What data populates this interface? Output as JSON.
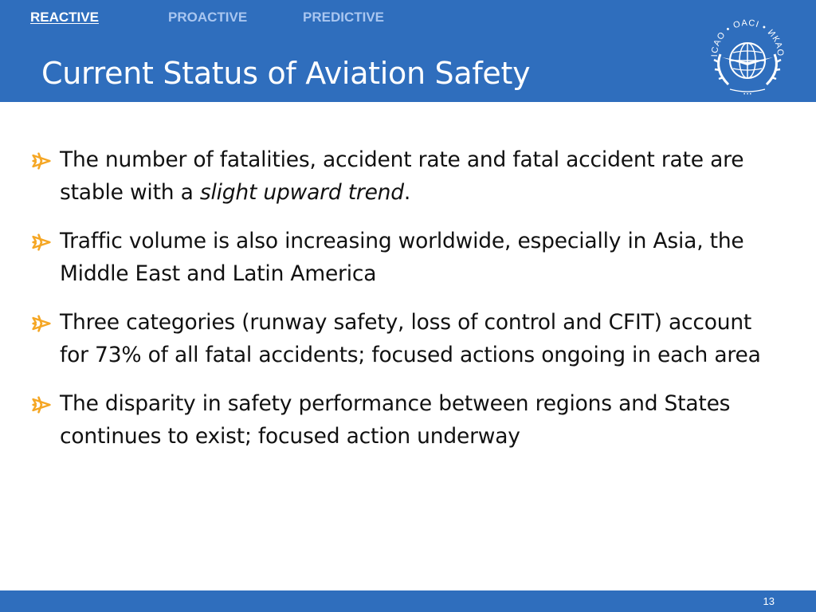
{
  "nav": {
    "tabs": [
      {
        "label": "REACTIVE",
        "active": true
      },
      {
        "label": "PROACTIVE",
        "active": false
      },
      {
        "label": "PREDICTIVE",
        "active": false
      }
    ]
  },
  "title": "Current Status of Aviation Safety",
  "logo": {
    "text": "ICAO • OACI • ИКАО",
    "icon": "icao-emblem-icon"
  },
  "bullets": [
    {
      "text_before": "The number of fatalities, accident rate and fatal accident rate are stable with a ",
      "emphasis": "slight upward trend",
      "text_after": "."
    },
    {
      "text_before": "Traffic volume is also increasing worldwide, especially in Asia, the Middle East and Latin America",
      "emphasis": "",
      "text_after": ""
    },
    {
      "text_before": "Three categories (runway safety, loss of control and CFIT) account for 73% of all fatal accidents; focused actions ongoing in each area",
      "emphasis": "",
      "text_after": ""
    },
    {
      "text_before": "The disparity in safety performance between regions and States continues to exist; focused action underway",
      "emphasis": "",
      "text_after": ""
    }
  ],
  "bullet_icon": "airplane-icon",
  "page_number": "13",
  "colors": {
    "header_blue": "#2f6ebd",
    "inactive_tab": "#a9c6f0",
    "bullet_orange": "#f5a623"
  }
}
